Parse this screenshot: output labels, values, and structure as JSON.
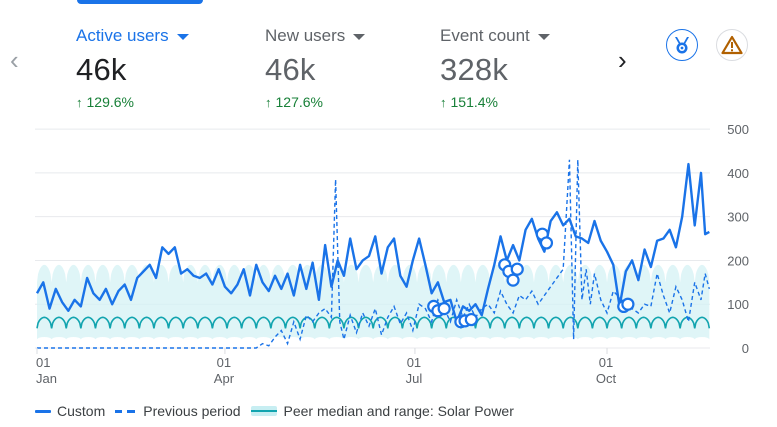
{
  "metrics": [
    {
      "label": "Active users",
      "value": "46k",
      "delta": "129.6%",
      "active": true
    },
    {
      "label": "New users",
      "value": "46k",
      "delta": "127.6%",
      "active": false
    },
    {
      "label": "Event count",
      "value": "328k",
      "delta": "151.4%",
      "active": false
    }
  ],
  "icons": {
    "prev": "chevron-left-icon",
    "next": "chevron-right-icon",
    "badge": "medal-icon",
    "warning": "warning-triangle-icon",
    "delta_arrow": "arrow-up-icon"
  },
  "glyphs": {
    "prev": "‹",
    "next": "›",
    "up": "↑"
  },
  "legend": {
    "custom": "Custom",
    "previous": "Previous period",
    "peer": "Peer median and range: Solar Power"
  },
  "colors": {
    "custom": "#1a73e8",
    "previous": "#1a73e8",
    "peer_line": "#12a4af",
    "peer_band": "#d4f1f4",
    "delta_positive": "#188038",
    "warning": "#b06000"
  },
  "chart_data": {
    "type": "line",
    "title": "",
    "xlabel": "",
    "ylabel": "",
    "ylim": [
      0,
      500
    ],
    "yticks": [
      0,
      100,
      200,
      300,
      400,
      500
    ],
    "ytick_side": "right",
    "grid": true,
    "legend_position": "bottom-left",
    "x_unit": "day of year (0 = Jan 01)",
    "xlim": [
      0,
      322
    ],
    "xticks": [
      {
        "day": 0,
        "day_label": "01",
        "month_label": "Jan"
      },
      {
        "day": 90,
        "day_label": "01",
        "month_label": "Apr"
      },
      {
        "day": 181,
        "day_label": "01",
        "month_label": "Jul"
      },
      {
        "day": 273,
        "day_label": "01",
        "month_label": "Oct"
      }
    ],
    "series": [
      {
        "name": "Custom",
        "style": "solid",
        "x": [
          0,
          3,
          6,
          9,
          12,
          15,
          18,
          21,
          24,
          27,
          30,
          33,
          36,
          39,
          42,
          45,
          48,
          51,
          54,
          57,
          60,
          63,
          66,
          69,
          72,
          75,
          78,
          81,
          84,
          87,
          90,
          93,
          96,
          99,
          102,
          105,
          108,
          111,
          114,
          117,
          120,
          123,
          126,
          129,
          132,
          135,
          138,
          141,
          144,
          147,
          150,
          153,
          156,
          159,
          162,
          165,
          168,
          171,
          174,
          177,
          180,
          183,
          186,
          189,
          192,
          195,
          198,
          201,
          204,
          207,
          210,
          213,
          216,
          219,
          222,
          225,
          228,
          231,
          234,
          237,
          240,
          243,
          246,
          249,
          252,
          255,
          258,
          261,
          264,
          267,
          270,
          273,
          276,
          279,
          282,
          285,
          288,
          291,
          294,
          297,
          300,
          303,
          306,
          309,
          312,
          315,
          318,
          320,
          322
        ],
        "values": [
          125,
          150,
          90,
          135,
          105,
          85,
          110,
          95,
          160,
          125,
          110,
          135,
          100,
          130,
          145,
          110,
          160,
          175,
          190,
          160,
          230,
          215,
          230,
          170,
          180,
          165,
          160,
          170,
          145,
          180,
          140,
          125,
          145,
          180,
          120,
          190,
          150,
          130,
          165,
          135,
          170,
          120,
          190,
          135,
          195,
          110,
          235,
          140,
          200,
          165,
          250,
          180,
          200,
          210,
          255,
          170,
          230,
          250,
          165,
          140,
          200,
          250,
          190,
          125,
          150,
          105,
          110,
          60,
          95,
          85,
          100,
          75,
          135,
          190,
          255,
          200,
          235,
          200,
          270,
          295,
          250,
          220,
          290,
          310,
          280,
          295,
          255,
          250,
          240,
          290,
          245,
          220,
          190,
          95,
          175,
          200,
          155,
          225,
          185,
          245,
          250,
          270,
          230,
          300,
          420,
          280,
          400,
          260,
          265
        ],
        "markers": [
          {
            "x": 190,
            "value": 95
          },
          {
            "x": 192,
            "value": 85
          },
          {
            "x": 195,
            "value": 90
          },
          {
            "x": 203,
            "value": 60
          },
          {
            "x": 205,
            "value": 62
          },
          {
            "x": 208,
            "value": 65
          },
          {
            "x": 224,
            "value": 190
          },
          {
            "x": 226,
            "value": 175
          },
          {
            "x": 228,
            "value": 155
          },
          {
            "x": 230,
            "value": 180
          },
          {
            "x": 242,
            "value": 260
          },
          {
            "x": 244,
            "value": 240
          },
          {
            "x": 281,
            "value": 95
          },
          {
            "x": 283,
            "value": 100
          }
        ]
      },
      {
        "name": "Previous period",
        "style": "dashed",
        "x": [
          0,
          10,
          20,
          30,
          40,
          50,
          60,
          70,
          80,
          90,
          95,
          100,
          105,
          108,
          111,
          114,
          117,
          120,
          123,
          126,
          129,
          132,
          135,
          138,
          141,
          143,
          145,
          147,
          150,
          153,
          156,
          159,
          162,
          165,
          168,
          171,
          174,
          177,
          180,
          183,
          186,
          189,
          192,
          195,
          198,
          201,
          204,
          207,
          210,
          213,
          216,
          219,
          222,
          225,
          228,
          231,
          234,
          237,
          240,
          243,
          246,
          249,
          252,
          255,
          257,
          259,
          261,
          263,
          265,
          267,
          270,
          273,
          276,
          279,
          282,
          285,
          288,
          291,
          294,
          297,
          300,
          303,
          306,
          309,
          312,
          315,
          318,
          320,
          322
        ],
        "values": [
          0,
          0,
          0,
          0,
          0,
          0,
          0,
          0,
          0,
          0,
          0,
          0,
          0,
          10,
          5,
          25,
          40,
          10,
          60,
          20,
          75,
          60,
          80,
          90,
          70,
          385,
          60,
          20,
          75,
          35,
          80,
          50,
          90,
          30,
          70,
          95,
          55,
          80,
          40,
          100,
          90,
          60,
          110,
          90,
          60,
          110,
          70,
          100,
          70,
          90,
          100,
          80,
          130,
          100,
          80,
          120,
          110,
          130,
          100,
          120,
          140,
          160,
          180,
          430,
          20,
          430,
          110,
          180,
          100,
          170,
          110,
          80,
          130,
          115,
          100,
          90,
          80,
          100,
          95,
          170,
          120,
          80,
          140,
          110,
          60,
          150,
          110,
          170,
          135
        ]
      },
      {
        "name": "Peer median: Solar Power",
        "style": "solid",
        "x_start": 0,
        "x_step": 7,
        "period_days": 7,
        "median_low": 45,
        "median_high": 70,
        "band_low": 20,
        "band_high": 190
      }
    ]
  }
}
